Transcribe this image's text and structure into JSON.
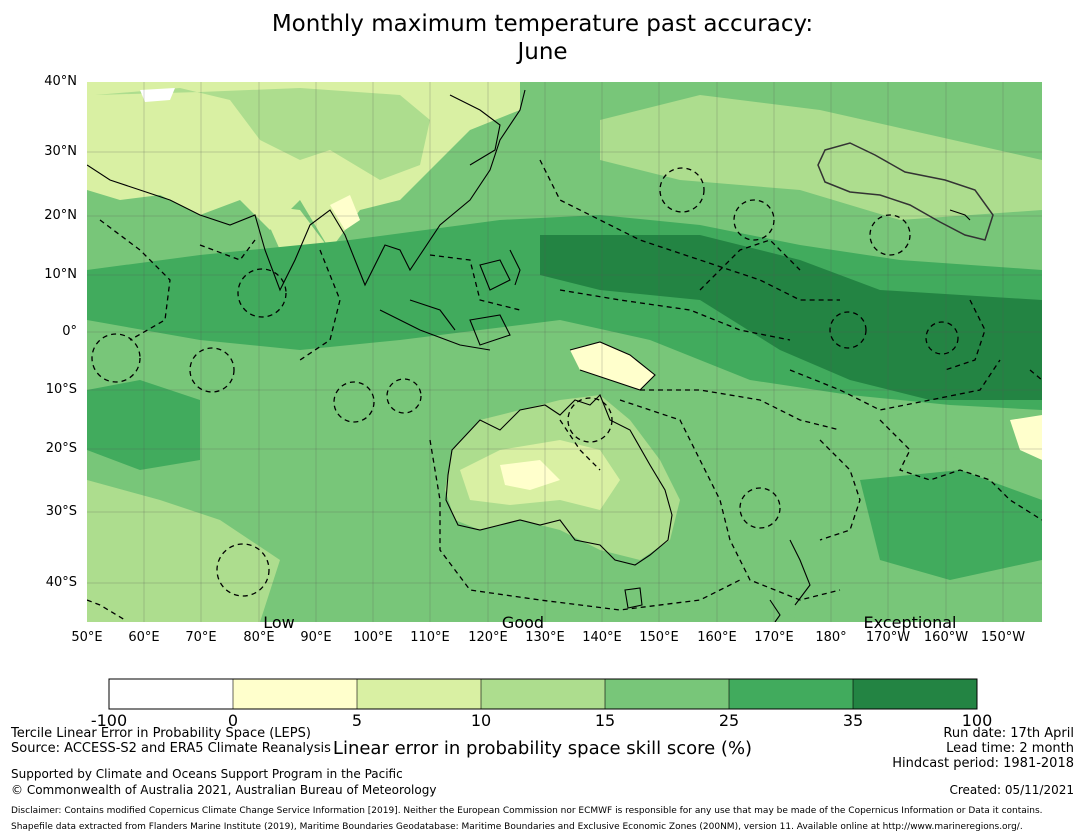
{
  "title": {
    "line1": "Monthly maximum temperature past accuracy:",
    "line2": "June"
  },
  "map": {
    "lat_labels": [
      "40°N",
      "30°N",
      "20°N",
      "10°N",
      "0°",
      "10°S",
      "20°S",
      "30°S",
      "40°S"
    ],
    "lon_labels": [
      "50°E",
      "60°E",
      "70°E",
      "80°E",
      "90°E",
      "100°E",
      "110°E",
      "120°E",
      "130°E",
      "140°E",
      "150°E",
      "160°E",
      "170°E",
      "180°",
      "170°W",
      "160°W",
      "150°W"
    ],
    "category_labels": [
      "Low",
      "Good",
      "Exceptional"
    ]
  },
  "colorbar": {
    "tick_labels": [
      "-100",
      "0",
      "5",
      "10",
      "15",
      "25",
      "35",
      "100"
    ],
    "colors": [
      "#ffffff",
      "#ffffcc",
      "#d9f0a3",
      "#addd8e",
      "#78c679",
      "#41ab5d",
      "#238443"
    ],
    "label": "Linear error in probability space skill score (%)"
  },
  "footer": {
    "left": {
      "line1": "Tercile Linear Error in Probability Space (LEPS)",
      "line2": "Source: ACCESS-S2 and ERA5 Climate Reanalysis",
      "line3": "Supported by Climate and Oceans Support Program in the Pacific",
      "line4": "© Commonwealth of Australia 2021, Australian Bureau of Meteorology"
    },
    "right": {
      "run_date": "Run date: 17th April",
      "lead_time": "Lead time: 2 month",
      "hindcast": "Hindcast period: 1981-2018",
      "created": "Created: 05/11/2021"
    },
    "disclaimer": "Disclaimer: Contains modified Copernicus Climate Change Service Information [2019]. Neither the European Commission nor ECMWF is responsible for any use that may be made of the Copernicus Information or Data it contains.",
    "shapefile": "Shapefile data extracted from Flanders Marine Institute (2019), Maritime Boundaries Geodatabase: Maritime Boundaries and Exclusive Economic Zones (200NM), version 11. Available online at http://www.marineregions.org/."
  }
}
